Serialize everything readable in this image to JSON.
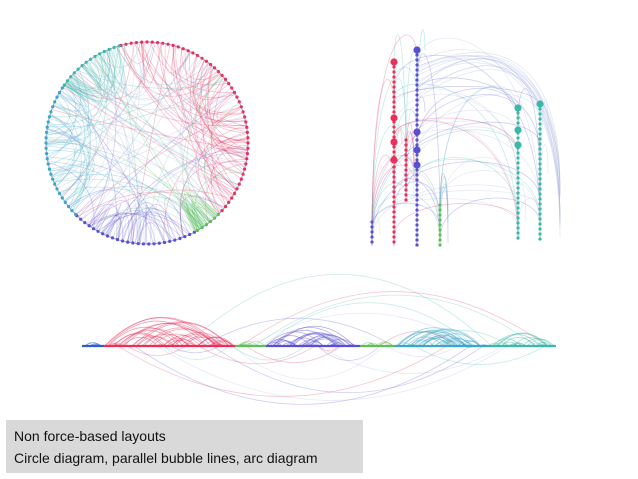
{
  "caption": {
    "line1": "Non force-based layouts",
    "line2": "Circle diagram, parallel bubble lines, arc diagram"
  },
  "colors": {
    "red": "#e8305a",
    "purple": "#5a4fd0",
    "teal": "#3bb8a8",
    "cyan": "#3aa6c8",
    "green": "#5fc05a",
    "blue": "#2e5fc8",
    "faint": "#a8b4e0"
  },
  "diagrams": [
    {
      "name": "circle-diagram"
    },
    {
      "name": "parallel-bubble-lines"
    },
    {
      "name": "arc-diagram"
    }
  ]
}
